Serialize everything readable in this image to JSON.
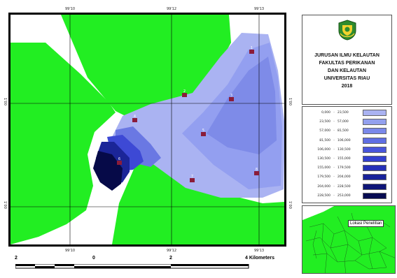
{
  "map": {
    "top_coords": [
      "99'10",
      "99'12",
      "99'13"
    ],
    "bottom_coords": [
      "99'10",
      "99'12",
      "99'13"
    ],
    "left_coords": [
      "1'00",
      "1'00"
    ],
    "right_coords": [
      "1'00",
      "1'00"
    ]
  },
  "title": {
    "lines": [
      "JURUSAN ILMU KELAUTAN",
      "FAKULTAS PERIKANAN",
      "DAN KELAUTAN",
      "UNIVERSITAS RIAU",
      "2018"
    ],
    "logo_icon": "university-emblem-icon"
  },
  "legend": {
    "rows": [
      {
        "low": "0,000",
        "high": "23,500",
        "color": "#aab3f2"
      },
      {
        "low": "23,500",
        "high": "57,000",
        "color": "#93a0ee"
      },
      {
        "low": "57,000",
        "high": "81,500",
        "color": "#7a88ea"
      },
      {
        "low": "81,500",
        "high": "106,000",
        "color": "#5f6ee3"
      },
      {
        "low": "106,000",
        "high": "130,500",
        "color": "#4855db"
      },
      {
        "low": "130,500",
        "high": "155,000",
        "color": "#3340cf"
      },
      {
        "low": "155,000",
        "high": "179,500",
        "color": "#2430b8"
      },
      {
        "low": "179,500",
        "high": "204,000",
        "color": "#18229a"
      },
      {
        "low": "204,000",
        "high": "228,500",
        "color": "#0e1577"
      },
      {
        "low": "228,500",
        "high": "253,000",
        "color": "#070b50"
      }
    ]
  },
  "inset": {
    "label": "Lokasi Penelitian"
  },
  "scalebar": {
    "labels": [
      "2",
      "0",
      "2",
      "4 Kilometers"
    ]
  },
  "stations": [
    "1",
    "2",
    "3",
    "4",
    "5",
    "6",
    "7",
    "8"
  ],
  "colors": {
    "land": "#22ee22",
    "water": "#ffffff",
    "frame": "#000000"
  }
}
